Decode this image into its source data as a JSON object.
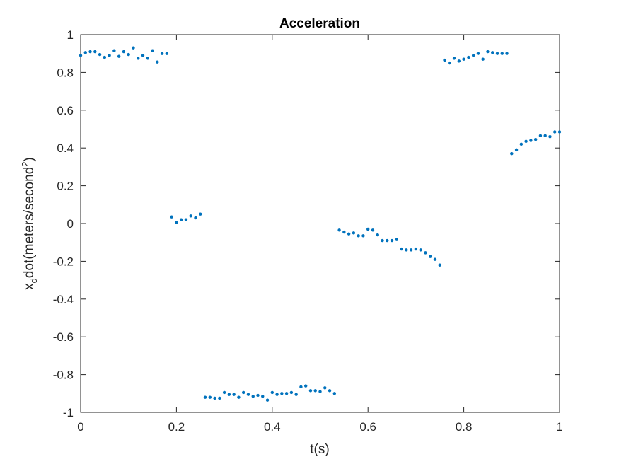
{
  "chart_data": {
    "type": "scatter",
    "title": "Acceleration",
    "xlabel": "t(s)",
    "ylabel": {
      "base": "x",
      "subscript": "d",
      "mid": "dot(meters/second",
      "superscript": "2",
      "end": ")"
    },
    "xlim": [
      0,
      1
    ],
    "ylim": [
      -1,
      1
    ],
    "xticks": [
      "0",
      "0.2",
      "0.4",
      "0.6",
      "0.8",
      "1"
    ],
    "yticks": [
      "1",
      "0.8",
      "0.6",
      "0.4",
      "0.2",
      "0",
      "-0.2",
      "-0.4",
      "-0.6",
      "-0.8",
      "-1"
    ],
    "grid": false,
    "marker_color": "#0072BD",
    "x": [
      0.0,
      0.01,
      0.02,
      0.03,
      0.04,
      0.05,
      0.06,
      0.07,
      0.08,
      0.09,
      0.1,
      0.11,
      0.12,
      0.13,
      0.14,
      0.15,
      0.16,
      0.17,
      0.18,
      0.19,
      0.2,
      0.21,
      0.22,
      0.23,
      0.24,
      0.25,
      0.26,
      0.27,
      0.28,
      0.29,
      0.3,
      0.31,
      0.32,
      0.33,
      0.34,
      0.35,
      0.36,
      0.37,
      0.38,
      0.39,
      0.4,
      0.41,
      0.42,
      0.43,
      0.44,
      0.45,
      0.46,
      0.47,
      0.48,
      0.49,
      0.5,
      0.51,
      0.52,
      0.53,
      0.54,
      0.55,
      0.56,
      0.57,
      0.58,
      0.59,
      0.6,
      0.61,
      0.62,
      0.63,
      0.64,
      0.65,
      0.66,
      0.67,
      0.68,
      0.69,
      0.7,
      0.71,
      0.72,
      0.73,
      0.74,
      0.75,
      0.76,
      0.77,
      0.78,
      0.79,
      0.8,
      0.81,
      0.82,
      0.83,
      0.84,
      0.85,
      0.86,
      0.87,
      0.88,
      0.89,
      0.9,
      0.91,
      0.92,
      0.93,
      0.94,
      0.95,
      0.96,
      0.97,
      0.98,
      0.99,
      1.0
    ],
    "y": [
      0.89,
      0.905,
      0.91,
      0.91,
      0.895,
      0.88,
      0.89,
      0.915,
      0.885,
      0.91,
      0.895,
      0.93,
      0.875,
      0.89,
      0.875,
      0.915,
      0.855,
      0.9,
      0.9,
      0.035,
      0.005,
      0.02,
      0.02,
      0.04,
      0.03,
      0.05,
      -0.92,
      -0.92,
      -0.925,
      -0.925,
      -0.895,
      -0.905,
      -0.905,
      -0.92,
      -0.895,
      -0.905,
      -0.915,
      -0.91,
      -0.915,
      -0.935,
      -0.895,
      -0.905,
      -0.9,
      -0.9,
      -0.895,
      -0.905,
      -0.865,
      -0.86,
      -0.885,
      -0.885,
      -0.89,
      -0.87,
      -0.885,
      -0.9,
      -0.035,
      -0.045,
      -0.055,
      -0.05,
      -0.065,
      -0.065,
      -0.03,
      -0.035,
      -0.06,
      -0.09,
      -0.09,
      -0.09,
      -0.085,
      -0.135,
      -0.14,
      -0.14,
      -0.135,
      -0.14,
      -0.155,
      -0.175,
      -0.19,
      -0.22,
      0.865,
      0.85,
      0.875,
      0.86,
      0.87,
      0.88,
      0.89,
      0.9,
      0.87,
      0.91,
      0.905,
      0.9,
      0.9,
      0.9,
      0.37,
      0.39,
      0.42,
      0.435,
      0.44,
      0.445,
      0.465,
      0.465,
      0.46,
      0.485,
      0.485
    ]
  }
}
